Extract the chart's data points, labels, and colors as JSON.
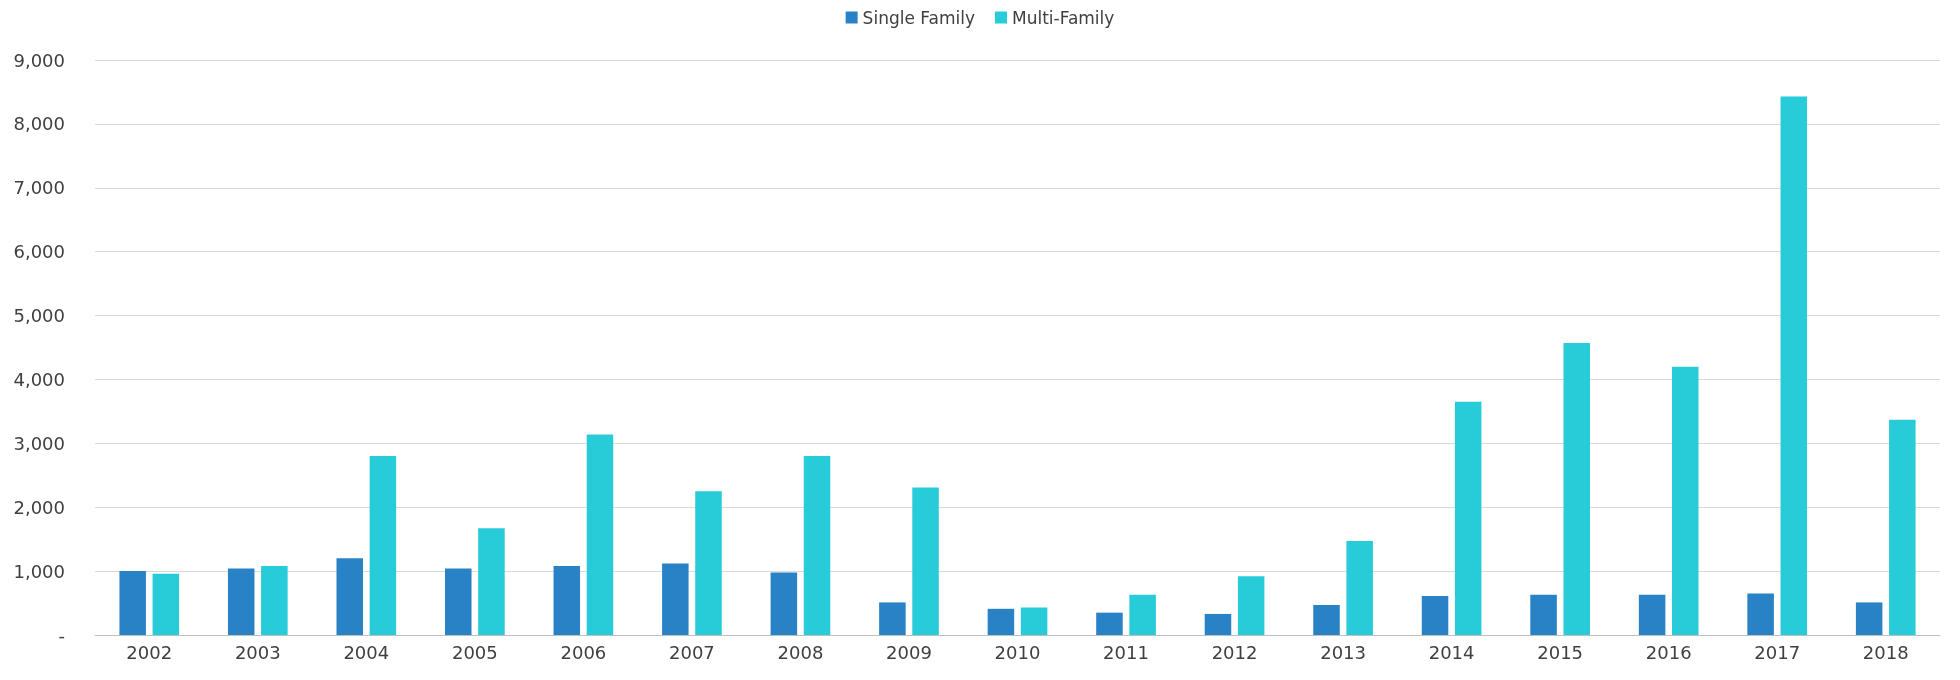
{
  "chart_data": {
    "type": "bar",
    "categories": [
      "2002",
      "2003",
      "2004",
      "2005",
      "2006",
      "2007",
      "2008",
      "2009",
      "2010",
      "2011",
      "2012",
      "2013",
      "2014",
      "2015",
      "2016",
      "2017",
      "2018"
    ],
    "series": [
      {
        "name": "Single Family",
        "color": "#2a82c6",
        "values": [
          1000,
          1040,
          1200,
          1040,
          1080,
          1120,
          980,
          510,
          410,
          350,
          330,
          470,
          610,
          630,
          630,
          650,
          510
        ]
      },
      {
        "name": "Multi-Family",
        "color": "#28ccd8",
        "values": [
          960,
          1080,
          2800,
          1670,
          3140,
          2250,
          2800,
          2310,
          430,
          630,
          920,
          1470,
          3650,
          4570,
          4200,
          8430,
          3370
        ]
      }
    ],
    "ylim": [
      0,
      9000
    ],
    "yticks": [
      {
        "value": 0,
        "label": "-"
      },
      {
        "value": 1000,
        "label": "1,000"
      },
      {
        "value": 2000,
        "label": "2,000"
      },
      {
        "value": 3000,
        "label": "3,000"
      },
      {
        "value": 4000,
        "label": "4,000"
      },
      {
        "value": 5000,
        "label": "5,000"
      },
      {
        "value": 6000,
        "label": "6,000"
      },
      {
        "value": 7000,
        "label": "7,000"
      },
      {
        "value": 8000,
        "label": "8,000"
      },
      {
        "value": 9000,
        "label": "9,000"
      }
    ],
    "grid": "y",
    "legend": "top"
  }
}
